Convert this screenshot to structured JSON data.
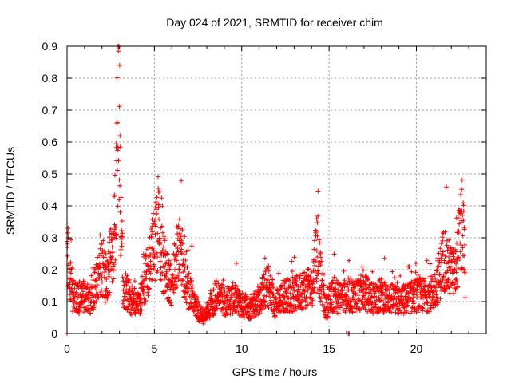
{
  "chart_data": {
    "type": "scatter",
    "title": "Day 024 of 2021, SRMTID for receiver chim",
    "xlabel": "GPS time / hours",
    "ylabel": "SRMTID / TECUs",
    "xlim": [
      0,
      24
    ],
    "ylim": [
      0,
      0.9
    ],
    "grid": true,
    "marker": "+",
    "color": "#ff0000",
    "x_ticks": [
      0,
      5,
      10,
      15,
      20
    ],
    "x_tick_labels": [
      "0",
      "5",
      "10",
      "15",
      "20"
    ],
    "y_ticks": [
      0,
      0.1,
      0.2,
      0.3,
      0.4,
      0.5,
      0.6,
      0.7,
      0.8,
      0.9
    ],
    "y_tick_labels": [
      "0",
      "0.1",
      "0.2",
      "0.3",
      "0.4",
      "0.5",
      "0.6",
      "0.7",
      "0.8",
      "0.9"
    ],
    "profile": [
      [
        0.0,
        0.28
      ],
      [
        0.1,
        0.2
      ],
      [
        0.3,
        0.12
      ],
      [
        0.6,
        0.11
      ],
      [
        1.0,
        0.12
      ],
      [
        1.3,
        0.1
      ],
      [
        1.6,
        0.14
      ],
      [
        1.9,
        0.22
      ],
      [
        2.2,
        0.17
      ],
      [
        2.5,
        0.24
      ],
      [
        2.7,
        0.3
      ],
      [
        2.85,
        0.5
      ],
      [
        2.95,
        0.75
      ],
      [
        3.05,
        0.45
      ],
      [
        3.2,
        0.15
      ],
      [
        3.5,
        0.12
      ],
      [
        3.8,
        0.1
      ],
      [
        4.1,
        0.09
      ],
      [
        4.4,
        0.15
      ],
      [
        4.8,
        0.24
      ],
      [
        5.1,
        0.3
      ],
      [
        5.25,
        0.38
      ],
      [
        5.4,
        0.25
      ],
      [
        5.7,
        0.18
      ],
      [
        6.0,
        0.15
      ],
      [
        6.3,
        0.25
      ],
      [
        6.5,
        0.28
      ],
      [
        6.8,
        0.15
      ],
      [
        7.2,
        0.12
      ],
      [
        7.6,
        0.06
      ],
      [
        7.9,
        0.05
      ],
      [
        8.2,
        0.09
      ],
      [
        8.6,
        0.12
      ],
      [
        9.0,
        0.1
      ],
      [
        9.5,
        0.11
      ],
      [
        10.0,
        0.09
      ],
      [
        10.5,
        0.08
      ],
      [
        11.0,
        0.11
      ],
      [
        11.5,
        0.15
      ],
      [
        11.9,
        0.09
      ],
      [
        12.4,
        0.12
      ],
      [
        13.0,
        0.12
      ],
      [
        13.5,
        0.14
      ],
      [
        14.0,
        0.14
      ],
      [
        14.3,
        0.28
      ],
      [
        14.5,
        0.18
      ],
      [
        14.8,
        0.08
      ],
      [
        15.2,
        0.12
      ],
      [
        15.6,
        0.11
      ],
      [
        16.0,
        0.12
      ],
      [
        16.5,
        0.12
      ],
      [
        17.0,
        0.13
      ],
      [
        17.5,
        0.11
      ],
      [
        18.0,
        0.12
      ],
      [
        18.5,
        0.11
      ],
      [
        19.0,
        0.1
      ],
      [
        19.5,
        0.11
      ],
      [
        20.0,
        0.12
      ],
      [
        20.5,
        0.12
      ],
      [
        21.0,
        0.13
      ],
      [
        21.3,
        0.18
      ],
      [
        21.6,
        0.24
      ],
      [
        21.9,
        0.2
      ],
      [
        22.2,
        0.18
      ],
      [
        22.5,
        0.3
      ],
      [
        22.65,
        0.34
      ],
      [
        22.8,
        0.18
      ]
    ],
    "flat_points": [
      [
        0.0,
        0.0
      ],
      [
        16.1,
        0.0
      ],
      [
        16.15,
        0.0
      ]
    ]
  }
}
